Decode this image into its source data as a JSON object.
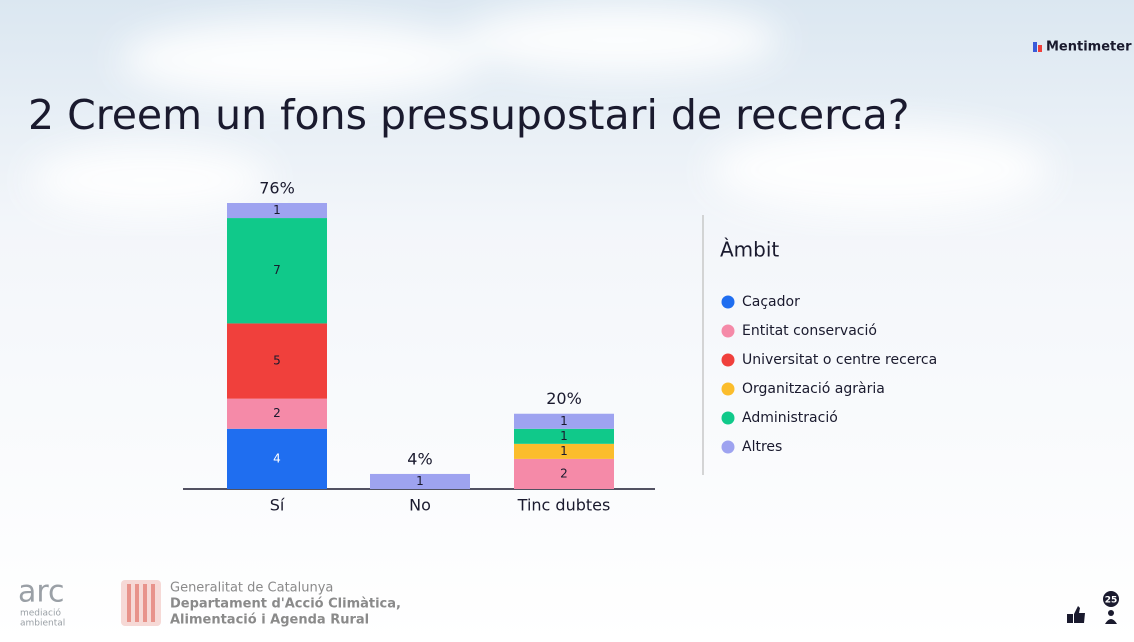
{
  "brand": "Mentimeter",
  "chart_data": {
    "type": "bar",
    "stacked": true,
    "title": "2 Creem un fons pressupostari de recerca?",
    "categories": [
      "Sí",
      "No",
      "Tinc dubtes"
    ],
    "series": [
      {
        "name": "Caçador",
        "color": "#1f6ef0",
        "values": [
          4,
          0,
          0
        ]
      },
      {
        "name": "Entitat conservació",
        "color": "#f58aa8",
        "values": [
          2,
          0,
          2
        ]
      },
      {
        "name": "Universitat o centre recerca",
        "color": "#f0403c",
        "values": [
          5,
          0,
          0
        ]
      },
      {
        "name": "Organització agrària",
        "color": "#fbbd2c",
        "values": [
          0,
          0,
          1
        ]
      },
      {
        "name": "Administració",
        "color": "#10c98a",
        "values": [
          7,
          0,
          1
        ]
      },
      {
        "name": "Altres",
        "color": "#9ea3f0",
        "values": [
          1,
          1,
          1
        ]
      }
    ],
    "percentages": [
      76,
      4,
      20
    ],
    "percentage_labels": [
      "76%",
      "4%",
      "20%"
    ],
    "legend_title": "Àmbit"
  },
  "footer": {
    "logo": "arc",
    "logo_sub": [
      "mediació",
      "ambiental"
    ],
    "org": "Generalitat de Catalunya",
    "department": [
      "Departament d'Acció Climàtica,",
      "Alimentació i Agenda Rural"
    ]
  },
  "participants": "25"
}
